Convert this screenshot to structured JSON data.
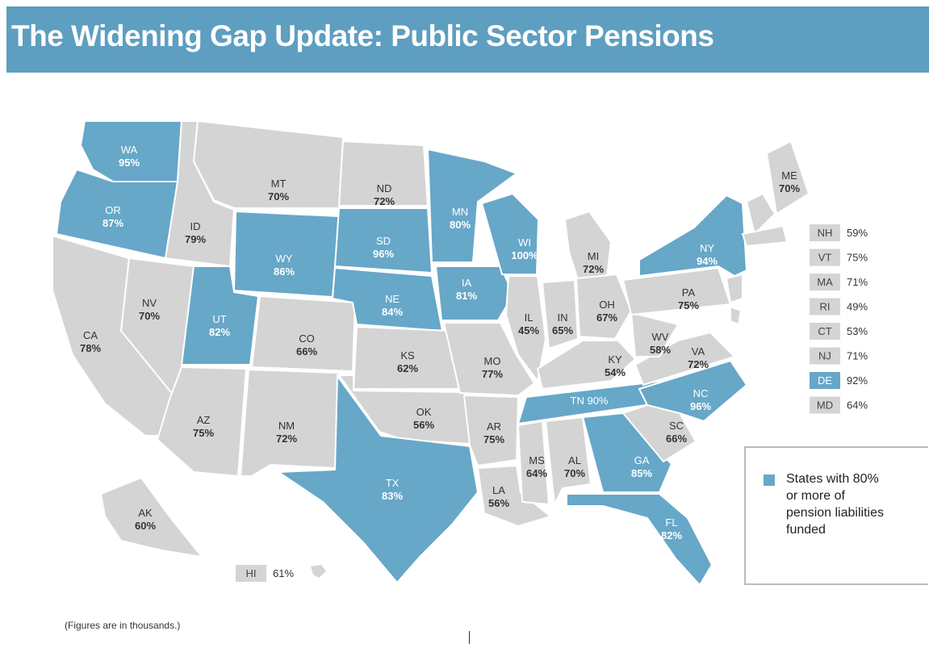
{
  "header": {
    "title": "The Widening Gap Update: Public Sector Pensions"
  },
  "states": [
    {
      "abbr": "WA",
      "pct": "95%",
      "color": "#67a7c8"
    },
    {
      "abbr": "OR",
      "pct": "87%",
      "color": "#67a7c8"
    },
    {
      "abbr": "CA",
      "pct": "78%",
      "color": "#d4d4d4"
    },
    {
      "abbr": "ID",
      "pct": "79%",
      "color": "#d4d4d4"
    },
    {
      "abbr": "NV",
      "pct": "70%",
      "color": "#d4d4d4"
    },
    {
      "abbr": "MT",
      "pct": "70%",
      "color": "#d4d4d4"
    },
    {
      "abbr": "WY",
      "pct": "86%",
      "color": "#67a7c8"
    },
    {
      "abbr": "UT",
      "pct": "82%",
      "color": "#67a7c8"
    },
    {
      "abbr": "AZ",
      "pct": "75%",
      "color": "#d4d4d4"
    },
    {
      "abbr": "CO",
      "pct": "66%",
      "color": "#d4d4d4"
    },
    {
      "abbr": "NM",
      "pct": "72%",
      "color": "#d4d4d4"
    },
    {
      "abbr": "ND",
      "pct": "72%",
      "color": "#d4d4d4"
    },
    {
      "abbr": "SD",
      "pct": "96%",
      "color": "#67a7c8"
    },
    {
      "abbr": "NE",
      "pct": "84%",
      "color": "#67a7c8"
    },
    {
      "abbr": "KS",
      "pct": "62%",
      "color": "#d4d4d4"
    },
    {
      "abbr": "OK",
      "pct": "56%",
      "color": "#d4d4d4"
    },
    {
      "abbr": "TX",
      "pct": "83%",
      "color": "#67a7c8"
    },
    {
      "abbr": "MN",
      "pct": "80%",
      "color": "#67a7c8"
    },
    {
      "abbr": "IA",
      "pct": "81%",
      "color": "#67a7c8"
    },
    {
      "abbr": "MO",
      "pct": "77%",
      "color": "#d4d4d4"
    },
    {
      "abbr": "AR",
      "pct": "75%",
      "color": "#d4d4d4"
    },
    {
      "abbr": "LA",
      "pct": "56%",
      "color": "#d4d4d4"
    },
    {
      "abbr": "WI",
      "pct": "100%",
      "color": "#67a7c8"
    },
    {
      "abbr": "IL",
      "pct": "45%",
      "color": "#d4d4d4"
    },
    {
      "abbr": "MI",
      "pct": "72%",
      "color": "#d4d4d4"
    },
    {
      "abbr": "IN",
      "pct": "65%",
      "color": "#d4d4d4"
    },
    {
      "abbr": "OH",
      "pct": "67%",
      "color": "#d4d4d4"
    },
    {
      "abbr": "KY",
      "pct": "54%",
      "color": "#d4d4d4"
    },
    {
      "abbr": "TN 90%",
      "pct": null,
      "color": "#67a7c8"
    },
    {
      "abbr": "MS",
      "pct": "64%",
      "color": "#d4d4d4"
    },
    {
      "abbr": "AL",
      "pct": "70%",
      "color": "#d4d4d4"
    },
    {
      "abbr": "GA",
      "pct": "85%",
      "color": "#67a7c8"
    },
    {
      "abbr": "FL",
      "pct": "82%",
      "color": "#67a7c8"
    },
    {
      "abbr": "SC",
      "pct": "66%",
      "color": "#d4d4d4"
    },
    {
      "abbr": "NC",
      "pct": "96%",
      "color": "#67a7c8"
    },
    {
      "abbr": "VA",
      "pct": "72%",
      "color": "#d4d4d4"
    },
    {
      "abbr": "WV",
      "pct": "58%",
      "color": "#d4d4d4"
    },
    {
      "abbr": "PA",
      "pct": "75%",
      "color": "#d4d4d4"
    },
    {
      "abbr": "NY",
      "pct": "94%",
      "color": "#67a7c8"
    },
    {
      "abbr": "ME",
      "pct": "70%",
      "color": "#d4d4d4"
    },
    {
      "abbr": "AK",
      "pct": "60%",
      "color": "#d4d4d4"
    }
  ],
  "small_states": [
    {
      "abbr": "NH",
      "pct": "59%",
      "color": "#d4d4d4"
    },
    {
      "abbr": "VT",
      "pct": "75%",
      "color": "#d4d4d4"
    },
    {
      "abbr": "MA",
      "pct": "71%",
      "color": "#d4d4d4"
    },
    {
      "abbr": "RI",
      "pct": "49%",
      "color": "#d4d4d4"
    },
    {
      "abbr": "CT",
      "pct": "53%",
      "color": "#d4d4d4"
    },
    {
      "abbr": "NJ",
      "pct": "71%",
      "color": "#d4d4d4"
    },
    {
      "abbr": "DE",
      "pct": "92%",
      "color": "#67a7c8"
    },
    {
      "abbr": "MD",
      "pct": "64%",
      "color": "#d4d4d4"
    },
    {
      "abbr": "HI",
      "pct": "61%",
      "color": "#d4d4d4"
    }
  ],
  "legend": {
    "color": "#67a7c8",
    "text": "States with 80% or more of pension liabilities funded"
  },
  "footnote": "(Figures are in thousands.)"
}
